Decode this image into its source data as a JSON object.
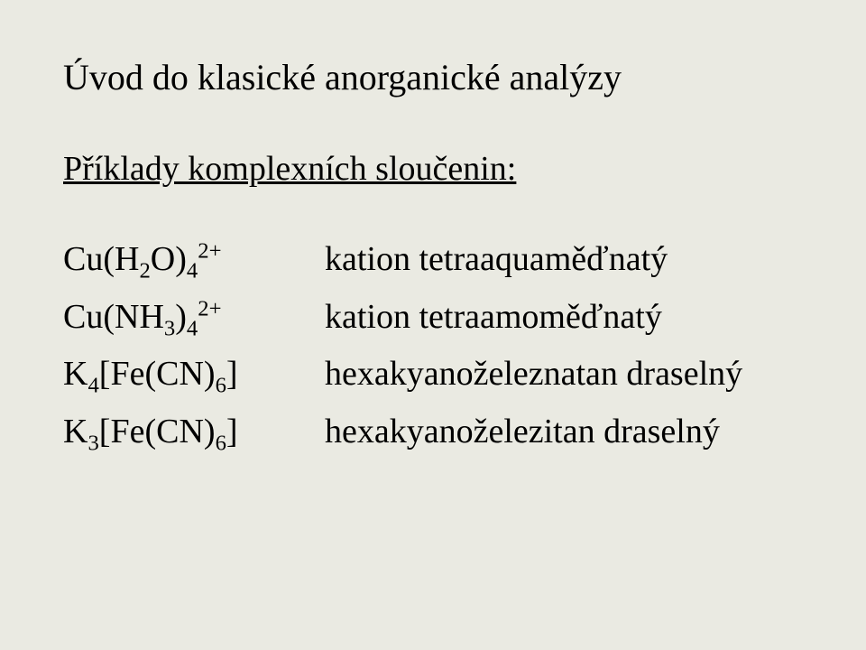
{
  "title": "Úvod do klasické anorganické analýzy",
  "subtitle": "Příklady komplexních sloučenin:",
  "rows": [
    {
      "formula": {
        "pre": "Cu(H",
        "sub1": "2",
        "mid": "O)",
        "sub2": "4",
        "sup": "2+",
        "post": ""
      },
      "desc": "kation tetraaquaměďnatý"
    },
    {
      "formula": {
        "pre": "Cu(NH",
        "sub1": "3",
        "mid": ")",
        "sub2": "4",
        "sup": "2+",
        "post": ""
      },
      "desc": "kation tetraamoměďnatý"
    },
    {
      "formula": {
        "pre": "K",
        "sub1": "4",
        "mid": "[Fe(CN)",
        "sub2": "6",
        "sup": "",
        "post": "]"
      },
      "desc": "hexakyanoželeznatan draselný"
    },
    {
      "formula": {
        "pre": "K",
        "sub1": "3",
        "mid": "[Fe(CN)",
        "sub2": "6",
        "sup": "",
        "post": "]"
      },
      "desc": "hexakyanoželezitan draselný"
    }
  ],
  "style": {
    "background_color": "#eaeae2",
    "text_color": "#000000",
    "font_family": "Times New Roman, serif",
    "title_fontsize": 40,
    "subtitle_fontsize": 38,
    "body_fontsize": 38
  }
}
